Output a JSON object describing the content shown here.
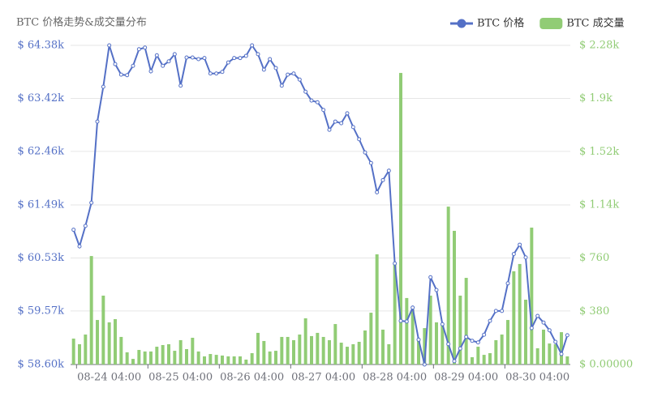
{
  "chart_data": {
    "type": "combo",
    "title": "BTC 价格走势&成交量分布",
    "categories": [
      null,
      null,
      null,
      null,
      null,
      null,
      "08-24 04:00",
      null,
      null,
      null,
      null,
      null,
      null,
      null,
      null,
      null,
      null,
      null,
      "08-25 04:00",
      null,
      null,
      null,
      null,
      null,
      null,
      null,
      null,
      null,
      null,
      null,
      "08-26 04:00",
      null,
      null,
      null,
      null,
      null,
      null,
      null,
      null,
      null,
      null,
      null,
      "08-27 04:00",
      null,
      null,
      null,
      null,
      null,
      null,
      null,
      null,
      null,
      null,
      null,
      "08-28 04:00",
      null,
      null,
      null,
      null,
      null,
      null,
      null,
      null,
      null,
      null,
      null,
      "08-29 04:00",
      null,
      null,
      null,
      null,
      null,
      null,
      null,
      null,
      null,
      null,
      null,
      "08-30 04:00",
      null,
      null,
      null,
      null,
      null
    ],
    "series": [
      {
        "name": "BTC 价格",
        "type": "line",
        "color": "#5470c6",
        "values": [
          61.04,
          60.74,
          61.11,
          61.53,
          63.0,
          63.63,
          64.38,
          64.04,
          63.85,
          63.84,
          64.01,
          64.31,
          64.34,
          63.91,
          64.2,
          64.01,
          64.09,
          64.22,
          63.65,
          64.16,
          64.16,
          64.13,
          64.15,
          63.87,
          63.87,
          63.9,
          64.07,
          64.15,
          64.15,
          64.19,
          64.38,
          64.22,
          63.94,
          64.13,
          63.97,
          63.65,
          63.85,
          63.87,
          63.76,
          63.54,
          63.38,
          63.35,
          63.21,
          62.85,
          63.0,
          62.97,
          63.15,
          62.9,
          62.68,
          62.44,
          62.25,
          61.72,
          61.94,
          62.11,
          60.43,
          59.39,
          59.38,
          59.63,
          59.05,
          58.6,
          60.18,
          59.95,
          59.33,
          58.97,
          58.66,
          58.89,
          59.1,
          59.03,
          59.0,
          59.14,
          59.39,
          59.57,
          59.57,
          60.07,
          60.6,
          60.77,
          60.54,
          59.26,
          59.48,
          59.36,
          59.22,
          59.01,
          58.79,
          59.13
        ]
      },
      {
        "name": "BTC 成交量",
        "type": "bar",
        "axis": "y2",
        "color": "#91cc75",
        "values": [
          185,
          145,
          214,
          775,
          318,
          492,
          301,
          324,
          197,
          87,
          40,
          104,
          93,
          93,
          127,
          139,
          145,
          98,
          174,
          110,
          191,
          93,
          58,
          75,
          69,
          64,
          58,
          58,
          58,
          35,
          81,
          226,
          168,
          93,
          98,
          197,
          197,
          174,
          214,
          330,
          203,
          226,
          197,
          174,
          289,
          156,
          127,
          145,
          162,
          243,
          370,
          787,
          249,
          145,
          723,
          2083,
          475,
          394,
          174,
          260,
          492,
          301,
          289,
          1128,
          955,
          492,
          619,
          52,
          127,
          69,
          81,
          174,
          214,
          318,
          666,
          718,
          463,
          978,
          116,
          249,
          150,
          145,
          231,
          58
        ]
      }
    ],
    "ylim": [
      58.6,
      64.38
    ],
    "yticks": [
      {
        "value": 58.6,
        "label": "$ 58.60k"
      },
      {
        "value": 59.57,
        "label": "$ 59.57k"
      },
      {
        "value": 60.53,
        "label": "$ 60.53k"
      },
      {
        "value": 61.49,
        "label": "$ 61.49k"
      },
      {
        "value": 62.46,
        "label": "$ 62.46k"
      },
      {
        "value": 63.42,
        "label": "$ 63.42k"
      },
      {
        "value": 64.38,
        "label": "$ 64.38k"
      }
    ],
    "y2lim": [
      0,
      2280
    ],
    "y2ticks": [
      {
        "value": 0,
        "label": "$ 0.00000"
      },
      {
        "value": 380,
        "label": "$ 380"
      },
      {
        "value": 760,
        "label": "$ 760"
      },
      {
        "value": 1140,
        "label": "$ 1.14k"
      },
      {
        "value": 1520,
        "label": "$ 1.52k"
      },
      {
        "value": 1900,
        "label": "$ 1.9k"
      },
      {
        "value": 2280,
        "label": "$ 2.28k"
      }
    ],
    "grid": true,
    "legend": "top-right"
  }
}
